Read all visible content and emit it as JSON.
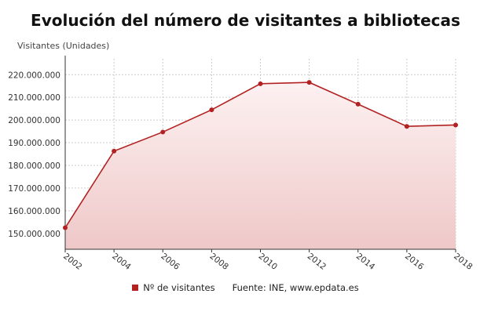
{
  "chart_data": {
    "type": "area",
    "title": "Evolución del número de visitantes a bibliotecas",
    "ylabel": "Visitantes (Unidades)",
    "xlabel": "",
    "x": [
      "2002",
      "2004",
      "2006",
      "2008",
      "2010",
      "2012",
      "2014",
      "2016",
      "2018"
    ],
    "series": [
      {
        "name": "Nº de visitantes",
        "values": [
          152500000,
          186300000,
          194700000,
          204500000,
          216000000,
          216600000,
          207000000,
          197200000,
          197800000
        ]
      }
    ],
    "ylim": [
      143000000,
      227000000
    ],
    "yticks": [
      150000000,
      160000000,
      170000000,
      180000000,
      190000000,
      200000000,
      210000000,
      220000000
    ],
    "ytick_labels": [
      "150.000.000",
      "160.000.000",
      "170.000.000",
      "180.000.000",
      "190.000.000",
      "200.000.000",
      "210.000.000",
      "220.000.000"
    ],
    "grid": true,
    "legend_position": "bottom",
    "source": "Fuente: INE, www.epdata.es",
    "colors": {
      "line": "#b22222",
      "fill_top": "#fbe8e8",
      "fill_bottom": "#f0c9c9",
      "grid": "#cccccc"
    }
  }
}
